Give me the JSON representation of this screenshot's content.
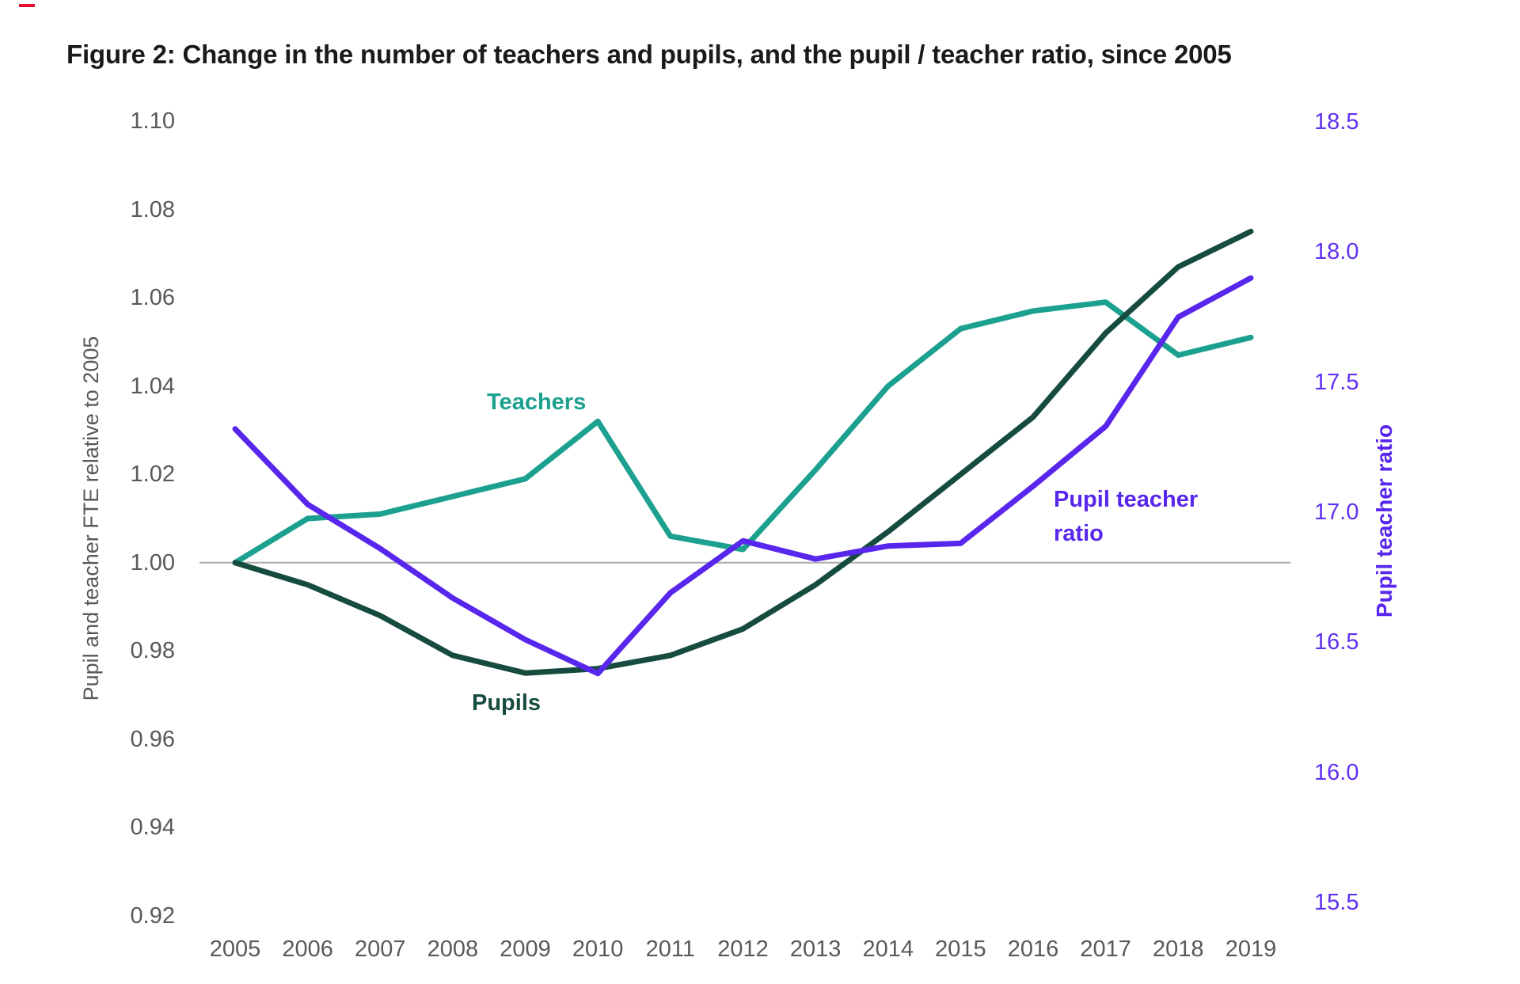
{
  "chart_data": {
    "type": "line",
    "title": "Figure 2: Change in the number of teachers and pupils, and the pupil / teacher ratio, since 2005",
    "x": [
      2005,
      2006,
      2007,
      2008,
      2009,
      2010,
      2011,
      2012,
      2013,
      2014,
      2015,
      2016,
      2017,
      2018,
      2019
    ],
    "series": [
      {
        "name": "Teachers",
        "axis": "left",
        "color": "#1CA08F",
        "values": [
          1.0,
          1.01,
          1.011,
          1.015,
          1.019,
          1.032,
          1.006,
          1.003,
          1.021,
          1.04,
          1.053,
          1.057,
          1.059,
          1.047,
          1.051
        ]
      },
      {
        "name": "Pupils",
        "axis": "left",
        "color": "#164C3F",
        "values": [
          1.0,
          0.995,
          0.988,
          0.979,
          0.975,
          0.976,
          0.979,
          0.985,
          0.995,
          1.007,
          1.02,
          1.033,
          1.052,
          1.067,
          1.075
        ]
      },
      {
        "name": "Pupil teacher ratio",
        "axis": "right",
        "color": "#5826EC",
        "values": [
          17.32,
          17.03,
          16.86,
          16.67,
          16.51,
          16.38,
          16.69,
          16.89,
          16.82,
          16.87,
          16.88,
          17.1,
          17.33,
          17.75,
          17.9
        ]
      }
    ],
    "left_axis": {
      "label": "Pupil and teacher FTE relative to 2005",
      "min": 0.92,
      "max": 1.1,
      "ticks": [
        "1.10",
        "1.08",
        "1.06",
        "1.04",
        "1.02",
        "1.00",
        "0.98",
        "0.96",
        "0.94",
        "0.92"
      ]
    },
    "right_axis": {
      "label": "Pupil teacher ratio",
      "min": 15.5,
      "max": 18.5,
      "ticks": [
        "18.5",
        "18.0",
        "17.5",
        "17.0",
        "16.5",
        "16.0",
        "15.5"
      ]
    },
    "baseline": {
      "value": 1.0,
      "color": "#ABABAB"
    },
    "annotations": {
      "teachers": "Teachers",
      "pupils": "Pupils",
      "ratio_line1": "Pupil teacher",
      "ratio_line2": "ratio"
    },
    "grid": "off",
    "legend_position": "inline-labels"
  }
}
